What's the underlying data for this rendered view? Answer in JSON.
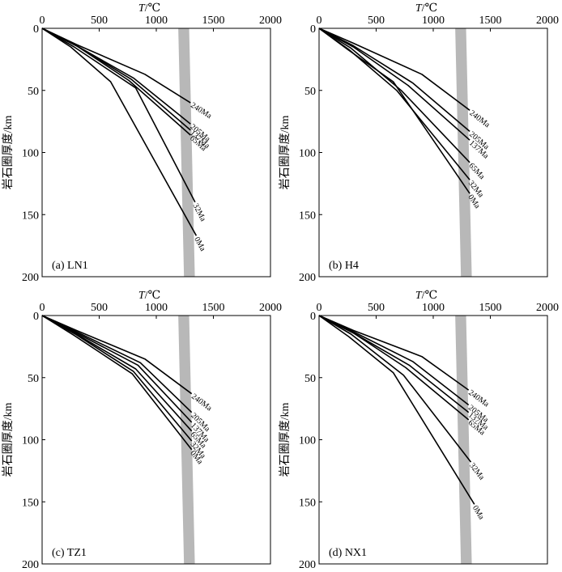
{
  "figure": {
    "shared_xlabel_italic": "T",
    "shared_xlabel_unit": "/℃",
    "shared_ylabel": "岩石圈厚度/km"
  },
  "colors": {
    "geotherm_line": "#000000",
    "solidus_band": "#b8b8b8",
    "axes": "#000000",
    "background": "#ffffff"
  },
  "chart_data": [
    {
      "type": "line",
      "panel_label": "(a) LN1",
      "xlabel": "T/℃",
      "ylabel": "岩石圈厚度/km",
      "xlim": [
        0,
        2000
      ],
      "ylim": [
        200,
        0
      ],
      "xticks": [
        "0",
        "500",
        "1000",
        "1500",
        "2000"
      ],
      "yticks": [
        "0",
        "50",
        "100",
        "150",
        "200"
      ],
      "solidus_band": {
        "x_top": 1240,
        "x_bottom": 1290,
        "width": 95
      },
      "series": [
        {
          "name": "240Ma",
          "x": [
            0,
            300,
            900,
            1300
          ],
          "y": [
            0,
            13,
            37,
            60
          ]
        },
        {
          "name": "205Ma",
          "x": [
            0,
            300,
            800,
            1300
          ],
          "y": [
            0,
            14,
            40,
            77
          ]
        },
        {
          "name": "137Ma",
          "x": [
            0,
            300,
            780,
            1300
          ],
          "y": [
            0,
            14,
            41,
            82
          ]
        },
        {
          "name": "65Ma",
          "x": [
            0,
            300,
            760,
            1300
          ],
          "y": [
            0,
            14,
            42,
            86
          ]
        },
        {
          "name": "32Ma",
          "x": [
            0,
            280,
            820,
            1340
          ],
          "y": [
            0,
            15,
            48,
            140
          ]
        },
        {
          "name": "0Ma",
          "x": [
            0,
            250,
            600,
            1350
          ],
          "y": [
            0,
            15,
            43,
            167
          ]
        }
      ]
    },
    {
      "type": "line",
      "panel_label": "(b) H4",
      "xlabel": "T/℃",
      "ylabel": "岩石圈厚度/km",
      "xlim": [
        0,
        2000
      ],
      "ylim": [
        200,
        0
      ],
      "xticks": [
        "0",
        "500",
        "1000",
        "1500",
        "2000"
      ],
      "yticks": [
        "0",
        "50",
        "100",
        "150",
        "200"
      ],
      "solidus_band": {
        "x_top": 1240,
        "x_bottom": 1290,
        "width": 95
      },
      "series": [
        {
          "name": "240Ma",
          "x": [
            0,
            300,
            900,
            1320
          ],
          "y": [
            0,
            12,
            37,
            66
          ]
        },
        {
          "name": "205Ma",
          "x": [
            0,
            300,
            820,
            1320
          ],
          "y": [
            0,
            14,
            44,
            83
          ]
        },
        {
          "name": "137Ma",
          "x": [
            0,
            300,
            780,
            1320
          ],
          "y": [
            0,
            15,
            46,
            90
          ]
        },
        {
          "name": "65Ma",
          "x": [
            0,
            280,
            720,
            1320
          ],
          "y": [
            0,
            16,
            50,
            108
          ]
        },
        {
          "name": "32Ma",
          "x": [
            0,
            260,
            680,
            1320
          ],
          "y": [
            0,
            17,
            50,
            122
          ]
        },
        {
          "name": "0Ma",
          "x": [
            0,
            250,
            650,
            1320
          ],
          "y": [
            0,
            17,
            43,
            133
          ]
        }
      ]
    },
    {
      "type": "line",
      "panel_label": "(c) TZ1",
      "xlabel": "T/℃",
      "ylabel": "岩石圈厚度/km",
      "xlim": [
        0,
        2000
      ],
      "ylim": [
        200,
        0
      ],
      "xticks": [
        "0",
        "500",
        "1000",
        "1500",
        "2000"
      ],
      "yticks": [
        "0",
        "50",
        "100",
        "150",
        "200"
      ],
      "solidus_band": {
        "x_top": 1240,
        "x_bottom": 1290,
        "width": 95
      },
      "series": [
        {
          "name": "240Ma",
          "x": [
            0,
            300,
            900,
            1310
          ],
          "y": [
            0,
            12,
            35,
            63
          ]
        },
        {
          "name": "205Ma",
          "x": [
            0,
            300,
            860,
            1310
          ],
          "y": [
            0,
            13,
            38,
            78
          ]
        },
        {
          "name": "137Ma",
          "x": [
            0,
            300,
            840,
            1310
          ],
          "y": [
            0,
            14,
            40,
            86
          ]
        },
        {
          "name": "65Ma",
          "x": [
            0,
            300,
            820,
            1310
          ],
          "y": [
            0,
            15,
            43,
            93
          ]
        },
        {
          "name": "32Ma",
          "x": [
            0,
            290,
            800,
            1310
          ],
          "y": [
            0,
            15,
            45,
            101
          ]
        },
        {
          "name": "0Ma",
          "x": [
            0,
            280,
            790,
            1310
          ],
          "y": [
            0,
            16,
            47,
            108
          ]
        }
      ]
    },
    {
      "type": "line",
      "panel_label": "(d) NX1",
      "xlabel": "T/℃",
      "ylabel": "岩石圈厚度/km",
      "xlim": [
        0,
        2000
      ],
      "ylim": [
        200,
        0
      ],
      "xticks": [
        "0",
        "500",
        "1000",
        "1500",
        "2000"
      ],
      "yticks": [
        "0",
        "50",
        "100",
        "150",
        "200"
      ],
      "solidus_band": {
        "x_top": 1240,
        "x_bottom": 1290,
        "width": 95
      },
      "series": [
        {
          "name": "240Ma",
          "x": [
            0,
            300,
            900,
            1310
          ],
          "y": [
            0,
            12,
            33,
            60
          ]
        },
        {
          "name": "205Ma",
          "x": [
            0,
            300,
            820,
            1310
          ],
          "y": [
            0,
            13,
            37,
            72
          ]
        },
        {
          "name": "137Ma",
          "x": [
            0,
            300,
            790,
            1310
          ],
          "y": [
            0,
            14,
            40,
            78
          ]
        },
        {
          "name": "65Ma",
          "x": [
            0,
            300,
            760,
            1310
          ],
          "y": [
            0,
            14,
            42,
            84
          ]
        },
        {
          "name": "32Ma",
          "x": [
            0,
            280,
            740,
            1330
          ],
          "y": [
            0,
            15,
            48,
            118
          ]
        },
        {
          "name": "0Ma",
          "x": [
            0,
            260,
            650,
            1360
          ],
          "y": [
            0,
            17,
            46,
            152
          ]
        }
      ]
    }
  ]
}
